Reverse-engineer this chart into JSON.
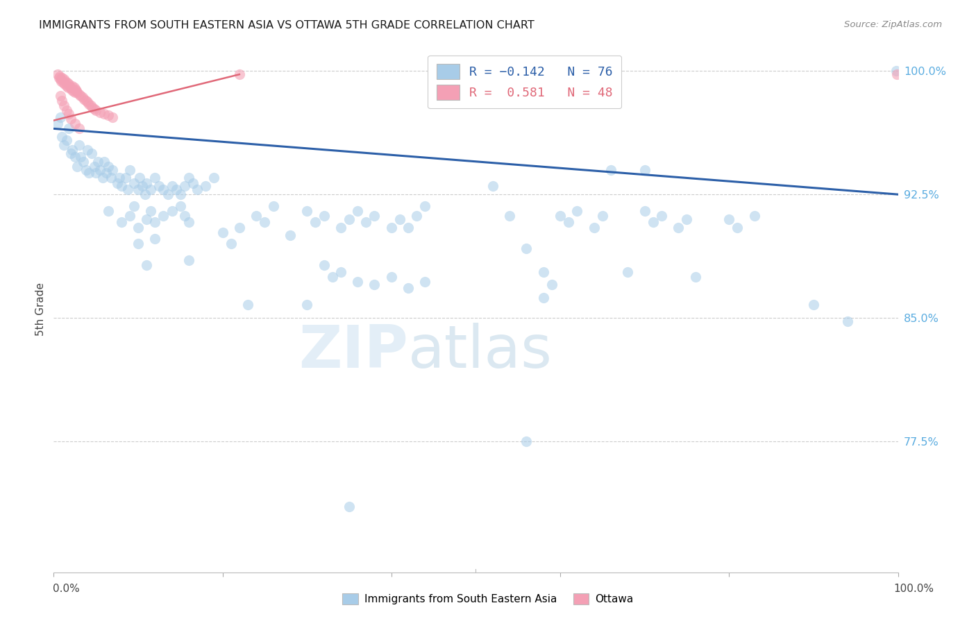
{
  "title": "IMMIGRANTS FROM SOUTH EASTERN ASIA VS OTTAWA 5TH GRADE CORRELATION CHART",
  "source": "Source: ZipAtlas.com",
  "ylabel": "5th Grade",
  "ytick_labels": [
    "100.0%",
    "92.5%",
    "85.0%",
    "77.5%"
  ],
  "ytick_values": [
    1.0,
    0.925,
    0.85,
    0.775
  ],
  "xlim": [
    0.0,
    1.0
  ],
  "ylim": [
    0.695,
    1.015
  ],
  "blue_color": "#a8cce8",
  "pink_color": "#f4a0b5",
  "blue_line_color": "#2c5fa8",
  "pink_line_color": "#e06878",
  "blue_scatter": [
    [
      0.005,
      0.968
    ],
    [
      0.008,
      0.972
    ],
    [
      0.01,
      0.96
    ],
    [
      0.012,
      0.955
    ],
    [
      0.015,
      0.958
    ],
    [
      0.018,
      0.965
    ],
    [
      0.02,
      0.95
    ],
    [
      0.022,
      0.952
    ],
    [
      0.025,
      0.948
    ],
    [
      0.028,
      0.942
    ],
    [
      0.03,
      0.955
    ],
    [
      0.032,
      0.948
    ],
    [
      0.035,
      0.945
    ],
    [
      0.038,
      0.94
    ],
    [
      0.04,
      0.952
    ],
    [
      0.042,
      0.938
    ],
    [
      0.045,
      0.95
    ],
    [
      0.048,
      0.942
    ],
    [
      0.05,
      0.938
    ],
    [
      0.052,
      0.945
    ],
    [
      0.055,
      0.94
    ],
    [
      0.058,
      0.935
    ],
    [
      0.06,
      0.945
    ],
    [
      0.062,
      0.938
    ],
    [
      0.065,
      0.942
    ],
    [
      0.068,
      0.935
    ],
    [
      0.07,
      0.94
    ],
    [
      0.075,
      0.932
    ],
    [
      0.078,
      0.935
    ],
    [
      0.08,
      0.93
    ],
    [
      0.085,
      0.935
    ],
    [
      0.088,
      0.928
    ],
    [
      0.09,
      0.94
    ],
    [
      0.095,
      0.932
    ],
    [
      0.1,
      0.928
    ],
    [
      0.102,
      0.935
    ],
    [
      0.105,
      0.93
    ],
    [
      0.108,
      0.925
    ],
    [
      0.11,
      0.932
    ],
    [
      0.115,
      0.928
    ],
    [
      0.12,
      0.935
    ],
    [
      0.125,
      0.93
    ],
    [
      0.13,
      0.928
    ],
    [
      0.135,
      0.925
    ],
    [
      0.14,
      0.93
    ],
    [
      0.145,
      0.928
    ],
    [
      0.15,
      0.925
    ],
    [
      0.155,
      0.93
    ],
    [
      0.16,
      0.935
    ],
    [
      0.165,
      0.932
    ],
    [
      0.17,
      0.928
    ],
    [
      0.18,
      0.93
    ],
    [
      0.19,
      0.935
    ],
    [
      0.065,
      0.915
    ],
    [
      0.08,
      0.908
    ],
    [
      0.09,
      0.912
    ],
    [
      0.095,
      0.918
    ],
    [
      0.1,
      0.905
    ],
    [
      0.11,
      0.91
    ],
    [
      0.115,
      0.915
    ],
    [
      0.12,
      0.908
    ],
    [
      0.13,
      0.912
    ],
    [
      0.14,
      0.915
    ],
    [
      0.15,
      0.918
    ],
    [
      0.155,
      0.912
    ],
    [
      0.16,
      0.908
    ],
    [
      0.1,
      0.895
    ],
    [
      0.12,
      0.898
    ],
    [
      0.11,
      0.882
    ],
    [
      0.16,
      0.885
    ],
    [
      0.2,
      0.902
    ],
    [
      0.21,
      0.895
    ],
    [
      0.22,
      0.905
    ],
    [
      0.24,
      0.912
    ],
    [
      0.25,
      0.908
    ],
    [
      0.26,
      0.918
    ],
    [
      0.28,
      0.9
    ],
    [
      0.3,
      0.915
    ],
    [
      0.31,
      0.908
    ],
    [
      0.32,
      0.912
    ],
    [
      0.34,
      0.905
    ],
    [
      0.35,
      0.91
    ],
    [
      0.36,
      0.915
    ],
    [
      0.37,
      0.908
    ],
    [
      0.38,
      0.912
    ],
    [
      0.4,
      0.905
    ],
    [
      0.41,
      0.91
    ],
    [
      0.42,
      0.905
    ],
    [
      0.43,
      0.912
    ],
    [
      0.44,
      0.918
    ],
    [
      0.52,
      0.93
    ],
    [
      0.54,
      0.912
    ],
    [
      0.6,
      0.912
    ],
    [
      0.61,
      0.908
    ],
    [
      0.62,
      0.915
    ],
    [
      0.64,
      0.905
    ],
    [
      0.65,
      0.912
    ],
    [
      0.7,
      0.915
    ],
    [
      0.71,
      0.908
    ],
    [
      0.72,
      0.912
    ],
    [
      0.74,
      0.905
    ],
    [
      0.75,
      0.91
    ],
    [
      0.8,
      0.91
    ],
    [
      0.81,
      0.905
    ],
    [
      0.83,
      0.912
    ],
    [
      0.32,
      0.882
    ],
    [
      0.33,
      0.875
    ],
    [
      0.34,
      0.878
    ],
    [
      0.36,
      0.872
    ],
    [
      0.38,
      0.87
    ],
    [
      0.4,
      0.875
    ],
    [
      0.42,
      0.868
    ],
    [
      0.44,
      0.872
    ],
    [
      0.56,
      0.892
    ],
    [
      0.58,
      0.878
    ],
    [
      0.68,
      0.878
    ],
    [
      0.76,
      0.875
    ],
    [
      0.58,
      0.862
    ],
    [
      0.59,
      0.87
    ],
    [
      0.23,
      0.858
    ],
    [
      0.3,
      0.858
    ],
    [
      0.66,
      0.94
    ],
    [
      0.7,
      0.94
    ],
    [
      0.998,
      1.0
    ],
    [
      0.56,
      0.775
    ],
    [
      0.35,
      0.735
    ],
    [
      0.9,
      0.858
    ],
    [
      0.94,
      0.848
    ]
  ],
  "pink_scatter": [
    [
      0.005,
      0.998
    ],
    [
      0.006,
      0.996
    ],
    [
      0.007,
      0.997
    ],
    [
      0.008,
      0.995
    ],
    [
      0.009,
      0.994
    ],
    [
      0.01,
      0.996
    ],
    [
      0.011,
      0.993
    ],
    [
      0.012,
      0.995
    ],
    [
      0.013,
      0.992
    ],
    [
      0.014,
      0.994
    ],
    [
      0.015,
      0.991
    ],
    [
      0.016,
      0.993
    ],
    [
      0.017,
      0.99
    ],
    [
      0.018,
      0.992
    ],
    [
      0.019,
      0.991
    ],
    [
      0.02,
      0.99
    ],
    [
      0.021,
      0.989
    ],
    [
      0.022,
      0.991
    ],
    [
      0.023,
      0.988
    ],
    [
      0.024,
      0.99
    ],
    [
      0.025,
      0.987
    ],
    [
      0.026,
      0.989
    ],
    [
      0.027,
      0.988
    ],
    [
      0.028,
      0.987
    ],
    [
      0.03,
      0.986
    ],
    [
      0.032,
      0.985
    ],
    [
      0.034,
      0.984
    ],
    [
      0.036,
      0.983
    ],
    [
      0.038,
      0.982
    ],
    [
      0.04,
      0.981
    ],
    [
      0.042,
      0.98
    ],
    [
      0.044,
      0.979
    ],
    [
      0.046,
      0.978
    ],
    [
      0.048,
      0.977
    ],
    [
      0.05,
      0.976
    ],
    [
      0.055,
      0.975
    ],
    [
      0.06,
      0.974
    ],
    [
      0.065,
      0.973
    ],
    [
      0.07,
      0.972
    ],
    [
      0.008,
      0.985
    ],
    [
      0.01,
      0.982
    ],
    [
      0.012,
      0.979
    ],
    [
      0.015,
      0.976
    ],
    [
      0.018,
      0.974
    ],
    [
      0.02,
      0.971
    ],
    [
      0.025,
      0.968
    ],
    [
      0.03,
      0.965
    ],
    [
      0.22,
      0.998
    ],
    [
      0.999,
      0.998
    ]
  ],
  "blue_trend_x": [
    0.0,
    1.0
  ],
  "blue_trend_y": [
    0.965,
    0.925
  ],
  "pink_trend_x": [
    0.0,
    0.22
  ],
  "pink_trend_y": [
    0.97,
    0.998
  ],
  "background_color": "#ffffff",
  "grid_color": "#cccccc",
  "watermark_zip": "ZIP",
  "watermark_atlas": "atlas"
}
